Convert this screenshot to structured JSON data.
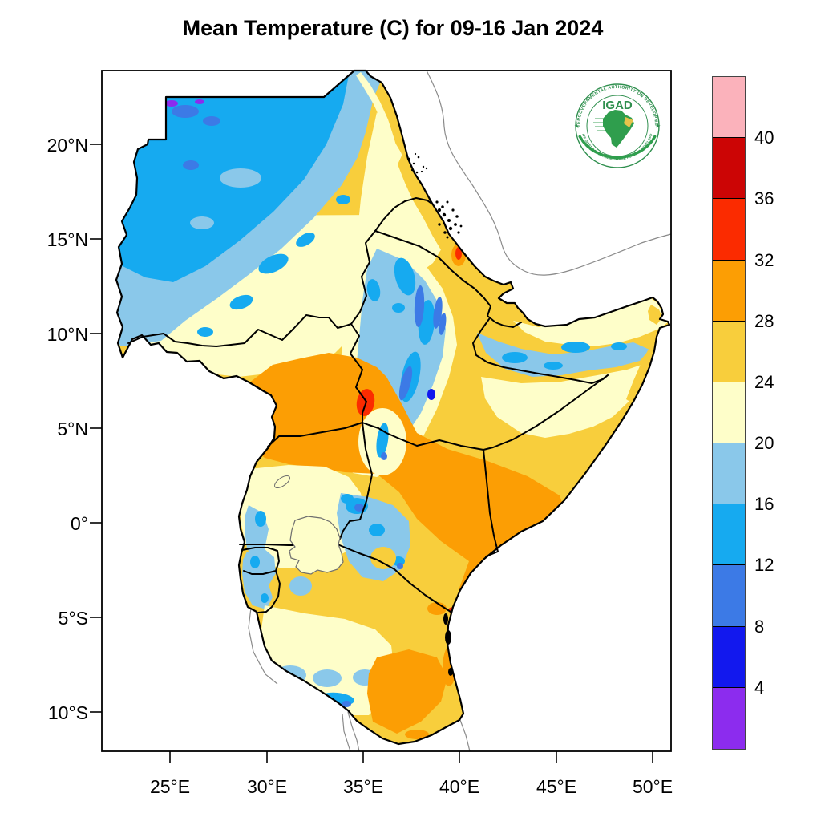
{
  "title": "Mean Temperature (C) for 09-16 Jan 2024",
  "axes": {
    "lat_labels": [
      "20°N",
      "15°N",
      "10°N",
      "5°N",
      "0°",
      "5°S",
      "10°S"
    ],
    "lon_labels": [
      "25°E",
      "30°E",
      "35°E",
      "40°E",
      "45°E",
      "50°E"
    ]
  },
  "colorbar": {
    "tick_labels": [
      "40",
      "36",
      "32",
      "28",
      "24",
      "20",
      "16",
      "12",
      "8",
      "4"
    ],
    "band_colors_top_to_bottom": [
      "#FBB2BB",
      "#CC0505",
      "#FB2B00",
      "#FC9E04",
      "#F8CE3C",
      "#FEFEC9",
      "#8AC8EA",
      "#16AAF0",
      "#3C7AE6",
      "#1218EE",
      "#8C2CEE"
    ]
  },
  "logo": {
    "acronym": "IGAD",
    "ring_text_top": "INTERGOVERNMENTAL AUTHORITY ON DEVELOPMENT",
    "ring_text_bottom": "AUTORITE INTERGOUVERNEMENTALE POUR LE DEVELOPPEMENT"
  },
  "palette": {
    "pink": "#FBB2BB",
    "darkred": "#CC0505",
    "redorange": "#FB2B00",
    "orange": "#FC9E04",
    "gold": "#F8CE3C",
    "paleyellow": "#FEFEC9",
    "lightblue": "#8AC8EA",
    "cyan": "#16AAF0",
    "royalblue": "#3C7AE6",
    "blue": "#1218EE",
    "purple": "#8C2CEE",
    "border": "#000000",
    "neighbor": "#8A8A8A",
    "lake": "#6E6E6E",
    "logogreen": "#2F8F4E",
    "africagreen": "#2F9E4D",
    "horngold": "#E6C34B"
  }
}
